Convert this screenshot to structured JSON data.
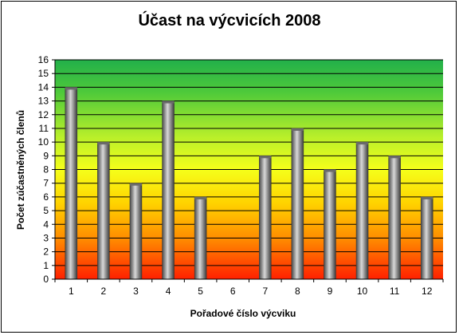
{
  "chart_data": {
    "type": "bar",
    "title": "Účast na výcvicích 2008",
    "xlabel": "Pořadové číslo výcviku",
    "ylabel": "Počet zúčastněných členů",
    "categories": [
      "1",
      "2",
      "3",
      "4",
      "5",
      "6",
      "7",
      "8",
      "9",
      "10",
      "11",
      "12"
    ],
    "values": [
      14,
      10,
      7,
      13,
      6,
      0,
      9,
      11,
      8,
      10,
      9,
      6
    ],
    "ylim": [
      0,
      16
    ],
    "yticks": [
      0,
      1,
      2,
      3,
      4,
      5,
      6,
      7,
      8,
      9,
      10,
      11,
      12,
      13,
      14,
      15,
      16
    ],
    "grid": true,
    "legend": "none",
    "colors": {
      "background_gradient": [
        "#ff2000",
        "#ff8a00",
        "#ffd400",
        "#f5ff1a",
        "#b8ef2a",
        "#4fca3a",
        "#22b04a"
      ],
      "bar_dark": "#4a4a4a",
      "bar_light": "#d8d8d8",
      "gridline": "#000000"
    }
  }
}
